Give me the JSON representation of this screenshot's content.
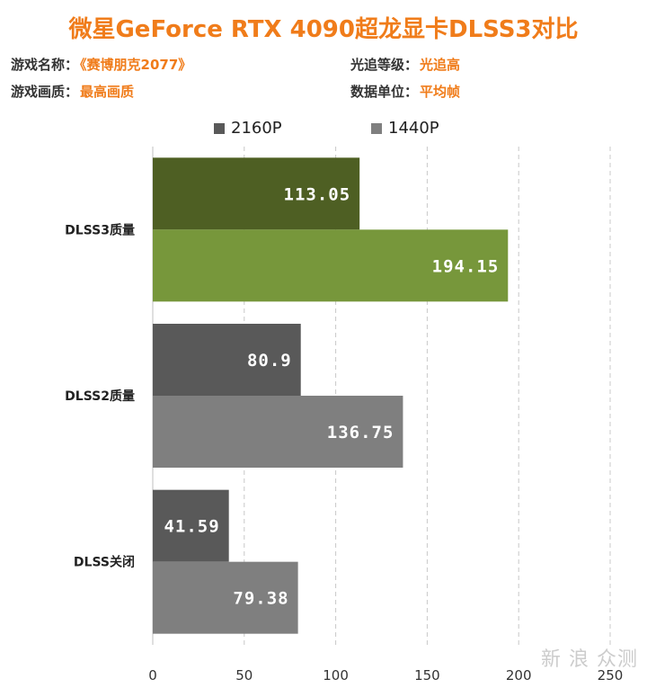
{
  "header": {
    "title": "微星GeForce RTX 4090超龙显卡DLSS3对比",
    "game_label": "游戏名称：",
    "game_value": "《赛博朋克2077》",
    "rt_label": "光追等级：",
    "rt_value": "光追高",
    "quality_label": "游戏画质：",
    "quality_value": "最高画质",
    "unit_label": "数据单位：",
    "unit_value": "平均帧"
  },
  "colors": {
    "accent": "#f07c1a",
    "dlss3_2160": "#4e5f23",
    "dlss3_1440": "#77973b",
    "other_2160": "#595959",
    "other_1440": "#7f7f7f"
  },
  "watermark": "新 浪 众测",
  "chart_data": {
    "type": "bar",
    "orientation": "horizontal",
    "categories": [
      "DLSS3质量",
      "DLSS2质量",
      "DLSS关闭"
    ],
    "series": [
      {
        "name": "2160P",
        "values": [
          113.05,
          80.9,
          41.59
        ]
      },
      {
        "name": "1440P",
        "values": [
          194.15,
          136.75,
          79.38
        ]
      }
    ],
    "value_labels": [
      [
        "113.05",
        "80.9",
        "41.59"
      ],
      [
        "194.15",
        "136.75",
        "79.38"
      ]
    ],
    "xlim": [
      0,
      250
    ],
    "xticks": [
      0,
      50,
      100,
      150,
      200,
      250
    ],
    "grid": true,
    "legend_position": "top"
  }
}
